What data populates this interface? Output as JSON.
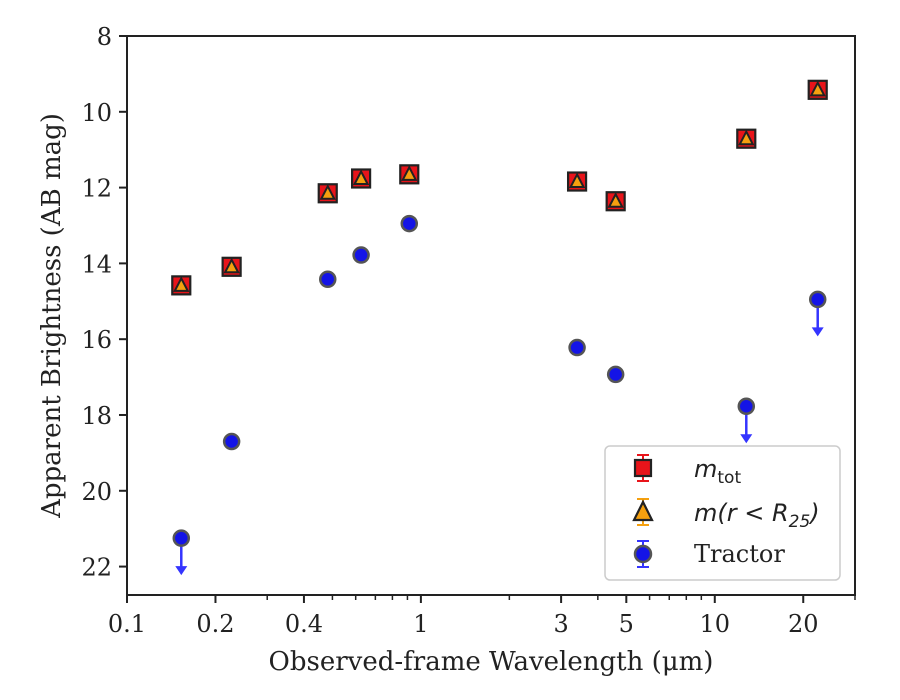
{
  "chart_data": {
    "type": "scatter",
    "xlabel": "Observed-frame Wavelength (μm)",
    "ylabel": "Apparent Brightness (AB mag)",
    "xscale": "log",
    "xlim": [
      0.1,
      30
    ],
    "ylim": [
      22.75,
      8
    ],
    "y_inverted": true,
    "grid": false,
    "legend_position": "lower-right",
    "x_ticks": [
      {
        "value": 0.1,
        "label": "0.1"
      },
      {
        "value": 0.2,
        "label": "0.2"
      },
      {
        "value": 0.4,
        "label": "0.4"
      },
      {
        "value": 1,
        "label": "1"
      },
      {
        "value": 3,
        "label": "3"
      },
      {
        "value": 5,
        "label": "5"
      },
      {
        "value": 10,
        "label": "10"
      },
      {
        "value": 20,
        "label": "20"
      }
    ],
    "y_ticks": [
      8,
      10,
      12,
      14,
      16,
      18,
      20,
      22
    ],
    "series": [
      {
        "name": "m_tot",
        "legend_main": "m",
        "legend_sub": "tot",
        "marker": "square",
        "color": "#e8141a",
        "points": [
          {
            "x": 0.153,
            "y": 14.58
          },
          {
            "x": 0.227,
            "y": 14.09
          },
          {
            "x": 0.482,
            "y": 12.15
          },
          {
            "x": 0.626,
            "y": 11.76
          },
          {
            "x": 0.913,
            "y": 11.65
          },
          {
            "x": 3.4,
            "y": 11.84
          },
          {
            "x": 4.6,
            "y": 12.36
          },
          {
            "x": 12.8,
            "y": 10.71
          },
          {
            "x": 22.4,
            "y": 9.42
          }
        ]
      },
      {
        "name": "m(r<R25)",
        "legend_text": "m(r < R",
        "legend_sub": "25",
        "marker": "triangle",
        "color": "#f5a00f",
        "points": [
          {
            "x": 0.153,
            "y": 14.58
          },
          {
            "x": 0.227,
            "y": 14.09
          },
          {
            "x": 0.482,
            "y": 12.15
          },
          {
            "x": 0.626,
            "y": 11.76
          },
          {
            "x": 0.913,
            "y": 11.65
          },
          {
            "x": 3.4,
            "y": 11.84
          },
          {
            "x": 4.6,
            "y": 12.36
          },
          {
            "x": 12.8,
            "y": 10.71
          },
          {
            "x": 22.4,
            "y": 9.42
          }
        ]
      },
      {
        "name": "Tractor",
        "marker": "circle",
        "color": "#1414e6",
        "points": [
          {
            "x": 0.153,
            "y": 21.25,
            "upper_limit": true
          },
          {
            "x": 0.227,
            "y": 18.7
          },
          {
            "x": 0.482,
            "y": 14.42
          },
          {
            "x": 0.626,
            "y": 13.78
          },
          {
            "x": 0.913,
            "y": 12.95
          },
          {
            "x": 3.4,
            "y": 16.22
          },
          {
            "x": 4.6,
            "y": 16.93
          },
          {
            "x": 12.8,
            "y": 17.77,
            "upper_limit": true
          },
          {
            "x": 22.4,
            "y": 14.95,
            "upper_limit": true
          }
        ]
      }
    ]
  }
}
